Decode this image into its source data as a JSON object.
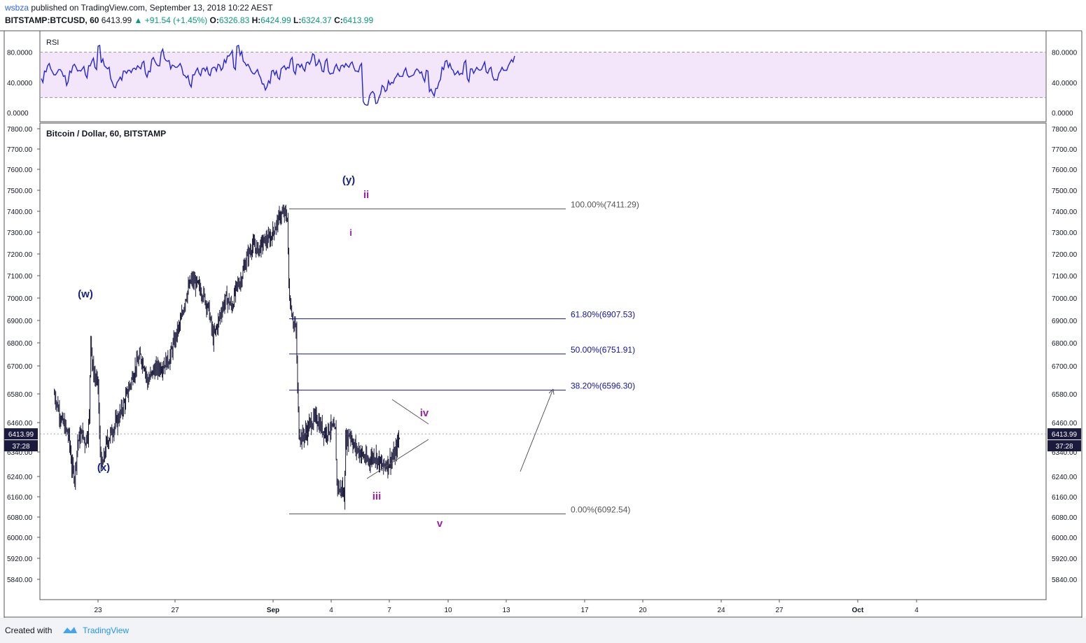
{
  "header": {
    "author": "wsbza",
    "published_text": "published on TradingView.com, September 13, 2018 10:22 AEST",
    "symbol": "BITSTAMP:BTCUSD, 60",
    "last": "6413.99",
    "change": "+91.54 (+1.45%)",
    "open_label": "O:",
    "open": "6326.83",
    "high_label": "H:",
    "high": "6424.99",
    "low_label": "L:",
    "low": "6324.37",
    "close_label": "C:",
    "close": "6413.99"
  },
  "footer": {
    "created_with": "Created with",
    "brand": "TradingView"
  },
  "colors": {
    "rsi_line": "#2323d8",
    "rsi_band": "#f3e6fb",
    "candles": "#1c1a3c",
    "fib_blue": "#1414a0",
    "fib_gray": "#555555",
    "wave_blue": "#1a237e",
    "wave_purple": "#9c1ea8",
    "price_badge": "#1c1a3c"
  },
  "chart_data": [
    {
      "type": "line",
      "title": "RSI",
      "ylim": [
        0,
        100
      ],
      "y_ticks": [
        "80.0000",
        "40.0000",
        "0.0000"
      ],
      "band": [
        20,
        80
      ],
      "series": [
        {
          "values": [
            45,
            55,
            62,
            58,
            50,
            53,
            57,
            48,
            36,
            55,
            62,
            60,
            56,
            58,
            50,
            62,
            68,
            60,
            88,
            66,
            62,
            58,
            45,
            34,
            40,
            47,
            55,
            52,
            56,
            58,
            57,
            60,
            66,
            52,
            55,
            70,
            68,
            62,
            80,
            72,
            68,
            58,
            62,
            60,
            65,
            50,
            46,
            38,
            50,
            55,
            52,
            58,
            55,
            51,
            58,
            60,
            64,
            56,
            70,
            75,
            78,
            60,
            88,
            76,
            68,
            62,
            60,
            52,
            54,
            50,
            38,
            30,
            42,
            55,
            50,
            46,
            58,
            62,
            60,
            70,
            55,
            64,
            60,
            58,
            66,
            64,
            78,
            62,
            70,
            55,
            68,
            55,
            52,
            60,
            58,
            62,
            60,
            62,
            65,
            60,
            55,
            62,
            15,
            10,
            22,
            28,
            12,
            20,
            36,
            28,
            42,
            40,
            45,
            52,
            48,
            55,
            50,
            48,
            50,
            58,
            52,
            46,
            56,
            28,
            26,
            32,
            40,
            60,
            68,
            60,
            58,
            50,
            55,
            52,
            66,
            45,
            58,
            52,
            60,
            56,
            62,
            54,
            58,
            48,
            44,
            52,
            60,
            56,
            62,
            70,
            75
          ],
          "last": 75
        }
      ]
    },
    {
      "type": "candlestick",
      "title": "Bitcoin / Dollar, 60, BITSTAMP",
      "ylim": [
        5780,
        7880
      ],
      "y_ticks": [
        "7800.00",
        "7700.00",
        "7600.00",
        "7500.00",
        "7400.00",
        "7300.00",
        "7200.00",
        "7100.00",
        "7000.00",
        "6900.00",
        "6800.00",
        "6700.00",
        "6580.00",
        "6460.00",
        "6340.00",
        "6240.00",
        "6160.00",
        "6080.00",
        "6000.00",
        "5920.00",
        "5840.00"
      ],
      "x_ticks": [
        "23",
        "27",
        "Sep",
        "4",
        "7",
        "10",
        "13",
        "17",
        "20",
        "24",
        "27",
        "Oct",
        "4"
      ],
      "last_price": "6413.99",
      "countdown": "37:28",
      "path": [
        [
          20,
          6580
        ],
        [
          20.5,
          6470
        ],
        [
          20.8,
          6430
        ],
        [
          21.0,
          6400
        ],
        [
          21.2,
          6280
        ],
        [
          21.4,
          6240
        ],
        [
          21.6,
          6380
        ],
        [
          21.9,
          6420
        ],
        [
          22.1,
          6380
        ],
        [
          22.3,
          6420
        ],
        [
          22.4,
          6480
        ],
        [
          22.5,
          6850
        ],
        [
          22.6,
          6700
        ],
        [
          22.8,
          6650
        ],
        [
          23.0,
          6620
        ],
        [
          23.1,
          6400
        ],
        [
          23.2,
          6300
        ],
        [
          23.3,
          6280
        ],
        [
          23.6,
          6380
        ],
        [
          24.0,
          6430
        ],
        [
          24.4,
          6480
        ],
        [
          24.8,
          6540
        ],
        [
          25.2,
          6620
        ],
        [
          25.6,
          6700
        ],
        [
          25.9,
          6740
        ],
        [
          26.2,
          6700
        ],
        [
          26.4,
          6630
        ],
        [
          26.8,
          6680
        ],
        [
          27.4,
          6700
        ],
        [
          27.9,
          6730
        ],
        [
          28.3,
          6820
        ],
        [
          28.7,
          6900
        ],
        [
          29.0,
          7000
        ],
        [
          29.4,
          7080
        ],
        [
          29.8,
          7060
        ],
        [
          30.2,
          7020
        ],
        [
          30.6,
          6950
        ],
        [
          30.9,
          6820
        ],
        [
          31.2,
          6880
        ],
        [
          31.5,
          6950
        ],
        [
          31.8,
          7000
        ],
        [
          32.2,
          6960
        ],
        [
          32.5,
          7050
        ],
        [
          32.8,
          7080
        ],
        [
          33.2,
          7180
        ],
        [
          33.6,
          7240
        ],
        [
          34.0,
          7220
        ],
        [
          34.4,
          7260
        ],
        [
          34.8,
          7270
        ],
        [
          35.2,
          7330
        ],
        [
          35.5,
          7380
        ],
        [
          35.8,
          7390
        ],
        [
          36.0,
          7370
        ],
        [
          36.1,
          7050
        ],
        [
          36.2,
          6980
        ],
        [
          36.4,
          6900
        ],
        [
          36.6,
          6850
        ],
        [
          36.7,
          6600
        ],
        [
          36.8,
          6420
        ],
        [
          37.0,
          6400
        ],
        [
          37.3,
          6420
        ],
        [
          37.6,
          6460
        ],
        [
          38.0,
          6480
        ],
        [
          38.3,
          6440
        ],
        [
          38.6,
          6420
        ],
        [
          39.0,
          6440
        ],
        [
          39.3,
          6420
        ],
        [
          39.4,
          6220
        ],
        [
          39.6,
          6180
        ],
        [
          39.7,
          6200
        ],
        [
          39.9,
          6160
        ],
        [
          40.0,
          6380
        ],
        [
          40.3,
          6420
        ],
        [
          40.6,
          6360
        ],
        [
          41.0,
          6340
        ],
        [
          41.5,
          6300
        ],
        [
          42.0,
          6330
        ],
        [
          42.5,
          6280
        ],
        [
          43.0,
          6300
        ],
        [
          43.4,
          6330
        ],
        [
          43.7,
          6410
        ]
      ],
      "fib_levels": [
        {
          "label": "100.00%(7411.29)",
          "value": 7411.29
        },
        {
          "label": "61.80%(6907.53)",
          "value": 6907.53
        },
        {
          "label": "50.00%(6751.91)",
          "value": 6751.91
        },
        {
          "label": "38.20%(6596.30)",
          "value": 6596.3
        },
        {
          "label": "0.00%(6092.54)",
          "value": 6092.54
        }
      ],
      "wave_labels": [
        {
          "text": "(w)",
          "color": "blue"
        },
        {
          "text": "(x)",
          "color": "blue"
        },
        {
          "text": "(y)",
          "color": "blue"
        },
        {
          "text": "i",
          "color": "purple"
        },
        {
          "text": "ii",
          "color": "purple"
        },
        {
          "text": "iii",
          "color": "purple"
        },
        {
          "text": "iv",
          "color": "purple"
        },
        {
          "text": "v",
          "color": "purple"
        }
      ]
    }
  ]
}
